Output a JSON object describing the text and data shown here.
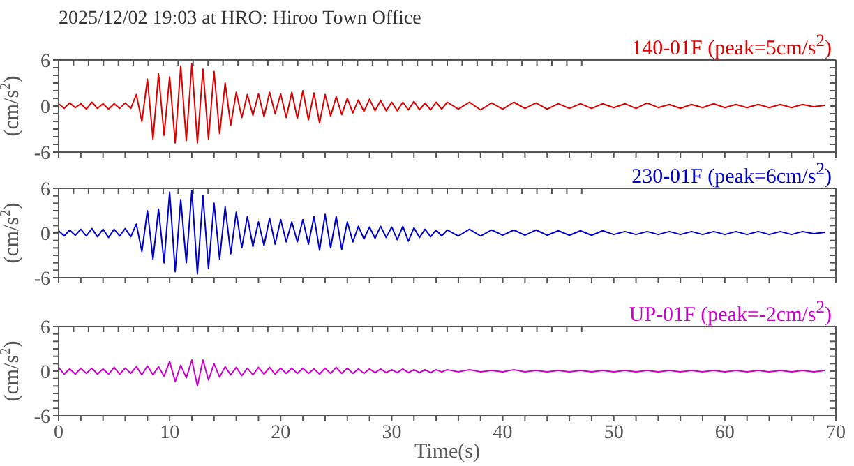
{
  "chart_data": [
    {
      "type": "line",
      "title": "2025/12/02 19:03 at HRO: Hiroo Town Office",
      "ylabel": "(cm/s$^{2}$)",
      "legend": "top right",
      "tick_labels": "y",
      "xlim": [
        0,
        70
      ],
      "xticks": [
        {
          "value": 0,
          "label": null
        },
        {
          "value": 2,
          "label": null
        },
        {
          "value": 4,
          "label": null
        },
        {
          "value": 6,
          "label": null
        },
        {
          "value": 8,
          "label": null
        },
        {
          "value": 10,
          "label": null
        },
        {
          "value": 12,
          "label": null
        },
        {
          "value": 14,
          "label": null
        },
        {
          "value": 16,
          "label": null
        },
        {
          "value": 18,
          "label": null
        },
        {
          "value": 20,
          "label": null
        },
        {
          "value": 22,
          "label": null
        },
        {
          "value": 24,
          "label": null
        },
        {
          "value": 26,
          "label": null
        },
        {
          "value": 28,
          "label": null
        },
        {
          "value": 30,
          "label": null
        },
        {
          "value": 32,
          "label": null
        },
        {
          "value": 34,
          "label": null
        },
        {
          "value": 36,
          "label": null
        },
        {
          "value": 38,
          "label": null
        },
        {
          "value": 40,
          "label": null
        },
        {
          "value": 42,
          "label": null
        },
        {
          "value": 44,
          "label": null
        },
        {
          "value": 46,
          "label": null
        },
        {
          "value": 48,
          "label": null
        },
        {
          "value": 50,
          "label": null
        },
        {
          "value": 52,
          "label": null
        },
        {
          "value": 54,
          "label": null
        },
        {
          "value": 56,
          "label": null
        },
        {
          "value": 58,
          "label": null
        },
        {
          "value": 60,
          "label": null
        },
        {
          "value": 62,
          "label": null
        },
        {
          "value": 64,
          "label": null
        },
        {
          "value": 66,
          "label": null
        },
        {
          "value": 68,
          "label": null
        },
        {
          "value": 70,
          "label": null
        }
      ],
      "ylim": [
        -6,
        6
      ],
      "yticks": [
        -6,
        {
          "value": -5,
          "label": null
        },
        {
          "value": -4,
          "label": null
        },
        {
          "value": -3,
          "label": null
        },
        {
          "value": -2,
          "label": null
        },
        {
          "value": -1,
          "label": null
        },
        0,
        {
          "value": 1,
          "label": null
        },
        {
          "value": 2,
          "label": null
        },
        {
          "value": 3,
          "label": null
        },
        {
          "value": 4,
          "label": null
        },
        {
          "value": 5,
          "label": null
        },
        6
      ],
      "x": [
        0,
        0.5,
        1,
        1.5,
        2,
        2.5,
        3,
        3.5,
        4,
        4.5,
        5,
        5.5,
        6,
        6.5,
        7,
        7.5,
        8,
        8.5,
        9,
        9.5,
        10,
        10.5,
        11,
        11.5,
        12,
        12.5,
        13,
        13.5,
        14,
        14.5,
        15,
        15.5,
        16,
        16.5,
        17,
        17.5,
        18,
        18.5,
        19,
        19.5,
        20,
        20.5,
        21,
        21.5,
        22,
        22.5,
        23,
        23.5,
        24,
        24.5,
        25,
        25.5,
        26,
        26.5,
        27,
        27.5,
        28,
        28.5,
        29,
        29.5,
        30,
        30.5,
        31,
        31.5,
        32,
        32.5,
        33,
        33.5,
        34,
        34.5,
        35,
        36,
        37,
        38,
        39,
        40,
        41,
        42,
        43,
        44,
        45,
        46,
        47,
        48,
        49,
        50,
        51,
        52,
        53,
        54,
        55,
        56,
        57,
        58,
        59,
        60,
        61,
        62,
        63,
        64,
        65,
        66,
        67,
        68,
        69
      ],
      "series": [
        {
          "name": "140-01F (peak=5cm/s$^{2}$)",
          "color": "#dd0000",
          "values": [
            0.3,
            -0.3,
            0.4,
            -0.2,
            0.3,
            -0.4,
            0.5,
            -0.3,
            0.3,
            -0.4,
            0.3,
            -0.3,
            0.4,
            -0.3,
            1.5,
            -2.0,
            3.5,
            -4.3,
            4.2,
            -3.8,
            3.8,
            -4.8,
            5.2,
            -4.5,
            5.5,
            -4.8,
            4.8,
            -4.3,
            4.5,
            -3.6,
            3.0,
            -2.5,
            1.8,
            -1.5,
            1.5,
            -1.2,
            1.6,
            -1.4,
            1.8,
            -1.0,
            1.6,
            -1.5,
            1.8,
            -1.6,
            2.0,
            -1.8,
            1.7,
            -2.2,
            1.5,
            -1.3,
            1.2,
            -1.1,
            1.0,
            -0.9,
            0.8,
            -0.7,
            0.9,
            -0.6,
            0.7,
            -0.6,
            0.5,
            -0.6,
            0.5,
            -0.5,
            0.6,
            -0.5,
            0.4,
            -0.5,
            0.5,
            -0.4,
            0.5,
            -0.4,
            0.5,
            -0.5,
            0.4,
            -0.4,
            0.5,
            -0.3,
            0.4,
            -0.4,
            0.3,
            -0.3,
            0.3,
            -0.3,
            0.3,
            -0.2,
            0.3,
            -0.3,
            0.4,
            -0.2,
            0.2,
            -0.3,
            0.2,
            -0.2,
            0.3,
            -0.2,
            0.2,
            -0.2,
            0.2,
            -0.2,
            0.2,
            -0.2,
            0.2,
            -0.1,
            0.1
          ]
        }
      ]
    },
    {
      "type": "line",
      "ylabel": "(cm/s$^{2}$)",
      "legend": "top right",
      "tick_labels": "y",
      "xlim": [
        0,
        70
      ],
      "xticks": [
        {
          "value": 0,
          "label": null
        },
        {
          "value": 2,
          "label": null
        },
        {
          "value": 4,
          "label": null
        },
        {
          "value": 6,
          "label": null
        },
        {
          "value": 8,
          "label": null
        },
        {
          "value": 10,
          "label": null
        },
        {
          "value": 12,
          "label": null
        },
        {
          "value": 14,
          "label": null
        },
        {
          "value": 16,
          "label": null
        },
        {
          "value": 18,
          "label": null
        },
        {
          "value": 20,
          "label": null
        },
        {
          "value": 22,
          "label": null
        },
        {
          "value": 24,
          "label": null
        },
        {
          "value": 26,
          "label": null
        },
        {
          "value": 28,
          "label": null
        },
        {
          "value": 30,
          "label": null
        },
        {
          "value": 32,
          "label": null
        },
        {
          "value": 34,
          "label": null
        },
        {
          "value": 36,
          "label": null
        },
        {
          "value": 38,
          "label": null
        },
        {
          "value": 40,
          "label": null
        },
        {
          "value": 42,
          "label": null
        },
        {
          "value": 44,
          "label": null
        },
        {
          "value": 46,
          "label": null
        },
        {
          "value": 48,
          "label": null
        },
        {
          "value": 50,
          "label": null
        },
        {
          "value": 52,
          "label": null
        },
        {
          "value": 54,
          "label": null
        },
        {
          "value": 56,
          "label": null
        },
        {
          "value": 58,
          "label": null
        },
        {
          "value": 60,
          "label": null
        },
        {
          "value": 62,
          "label": null
        },
        {
          "value": 64,
          "label": null
        },
        {
          "value": 66,
          "label": null
        },
        {
          "value": 68,
          "label": null
        },
        {
          "value": 70,
          "label": null
        }
      ],
      "ylim": [
        -6,
        6
      ],
      "yticks": [
        -6,
        {
          "value": -5,
          "label": null
        },
        {
          "value": -4,
          "label": null
        },
        {
          "value": -3,
          "label": null
        },
        {
          "value": -2,
          "label": null
        },
        {
          "value": -1,
          "label": null
        },
        0,
        {
          "value": 1,
          "label": null
        },
        {
          "value": 2,
          "label": null
        },
        {
          "value": 3,
          "label": null
        },
        {
          "value": 4,
          "label": null
        },
        {
          "value": 5,
          "label": null
        },
        6
      ],
      "x": [
        0,
        0.5,
        1,
        1.5,
        2,
        2.5,
        3,
        3.5,
        4,
        4.5,
        5,
        5.5,
        6,
        6.5,
        7,
        7.5,
        8,
        8.5,
        9,
        9.5,
        10,
        10.5,
        11,
        11.5,
        12,
        12.5,
        13,
        13.5,
        14,
        14.5,
        15,
        15.5,
        16,
        16.5,
        17,
        17.5,
        18,
        18.5,
        19,
        19.5,
        20,
        20.5,
        21,
        21.5,
        22,
        22.5,
        23,
        23.5,
        24,
        24.5,
        25,
        25.5,
        26,
        26.5,
        27,
        27.5,
        28,
        28.5,
        29,
        29.5,
        30,
        30.5,
        31,
        31.5,
        32,
        32.5,
        33,
        33.5,
        34,
        34.5,
        35,
        36,
        37,
        38,
        39,
        40,
        41,
        42,
        43,
        44,
        45,
        46,
        47,
        48,
        49,
        50,
        51,
        52,
        53,
        54,
        55,
        56,
        57,
        58,
        59,
        60,
        61,
        62,
        63,
        64,
        65,
        66,
        67,
        68,
        69
      ],
      "series": [
        {
          "name": "230-01F (peak=6cm/s$^{2}$)",
          "color": "#0000cc",
          "values": [
            0.3,
            -0.4,
            0.4,
            -0.3,
            0.5,
            -0.4,
            0.6,
            -0.5,
            0.5,
            -0.6,
            0.5,
            -0.4,
            0.6,
            -0.5,
            1.2,
            -2.5,
            3.0,
            -3.5,
            3.2,
            -4.0,
            5.5,
            -5.2,
            4.5,
            -4.0,
            5.7,
            -5.5,
            5.0,
            -4.8,
            4.0,
            -3.5,
            3.5,
            -2.8,
            2.8,
            -2.0,
            2.2,
            -1.8,
            1.5,
            -1.7,
            2.0,
            -1.5,
            1.8,
            -1.2,
            1.5,
            -1.2,
            1.8,
            -1.5,
            2.2,
            -2.3,
            2.5,
            -2.0,
            2.2,
            -2.2,
            1.5,
            -1.2,
            0.9,
            -0.8,
            0.8,
            -0.7,
            0.9,
            -0.6,
            0.8,
            -0.9,
            0.9,
            -1.1,
            0.7,
            -0.6,
            0.5,
            -0.5,
            0.4,
            -0.4,
            0.4,
            -0.4,
            0.5,
            -0.4,
            0.4,
            -0.3,
            0.4,
            -0.3,
            0.4,
            -0.3,
            0.3,
            -0.3,
            0.3,
            -0.3,
            0.3,
            -0.2,
            0.2,
            -0.2,
            0.2,
            -0.2,
            0.2,
            -0.2,
            0.2,
            -0.2,
            0.2,
            -0.2,
            0.2,
            -0.2,
            0.2,
            -0.2,
            0.2,
            -0.2,
            0.2,
            -0.1,
            0.1
          ]
        }
      ]
    },
    {
      "type": "line",
      "ylabel": "(cm/s$^{2}$)",
      "xlabel": "Time(s)",
      "legend": "top right",
      "xlim": [
        0,
        70
      ],
      "xticks": [
        0,
        {
          "value": 2,
          "label": null
        },
        {
          "value": 4,
          "label": null
        },
        {
          "value": 6,
          "label": null
        },
        {
          "value": 8,
          "label": null
        },
        10,
        {
          "value": 12,
          "label": null
        },
        {
          "value": 14,
          "label": null
        },
        {
          "value": 16,
          "label": null
        },
        {
          "value": 18,
          "label": null
        },
        20,
        {
          "value": 22,
          "label": null
        },
        {
          "value": 24,
          "label": null
        },
        {
          "value": 26,
          "label": null
        },
        {
          "value": 28,
          "label": null
        },
        30,
        {
          "value": 32,
          "label": null
        },
        {
          "value": 34,
          "label": null
        },
        {
          "value": 36,
          "label": null
        },
        {
          "value": 38,
          "label": null
        },
        40,
        {
          "value": 42,
          "label": null
        },
        {
          "value": 44,
          "label": null
        },
        {
          "value": 46,
          "label": null
        },
        {
          "value": 48,
          "label": null
        },
        50,
        {
          "value": 52,
          "label": null
        },
        {
          "value": 54,
          "label": null
        },
        {
          "value": 56,
          "label": null
        },
        {
          "value": 58,
          "label": null
        },
        60,
        {
          "value": 62,
          "label": null
        },
        {
          "value": 64,
          "label": null
        },
        {
          "value": 66,
          "label": null
        },
        {
          "value": 68,
          "label": null
        },
        70
      ],
      "ylim": [
        -6,
        6
      ],
      "yticks": [
        -6,
        {
          "value": -5,
          "label": null
        },
        {
          "value": -4,
          "label": null
        },
        {
          "value": -3,
          "label": null
        },
        {
          "value": -2,
          "label": null
        },
        {
          "value": -1,
          "label": null
        },
        0,
        {
          "value": 1,
          "label": null
        },
        {
          "value": 2,
          "label": null
        },
        {
          "value": 3,
          "label": null
        },
        {
          "value": 4,
          "label": null
        },
        {
          "value": 5,
          "label": null
        },
        6
      ],
      "x": [
        0,
        0.5,
        1,
        1.5,
        2,
        2.5,
        3,
        3.5,
        4,
        4.5,
        5,
        5.5,
        6,
        6.5,
        7,
        7.5,
        8,
        8.5,
        9,
        9.5,
        10,
        10.5,
        11,
        11.5,
        12,
        12.5,
        13,
        13.5,
        14,
        14.5,
        15,
        15.5,
        16,
        16.5,
        17,
        17.5,
        18,
        18.5,
        19,
        19.5,
        20,
        20.5,
        21,
        21.5,
        22,
        22.5,
        23,
        23.5,
        24,
        24.5,
        25,
        25.5,
        26,
        26.5,
        27,
        27.5,
        28,
        28.5,
        29,
        29.5,
        30,
        30.5,
        31,
        31.5,
        32,
        32.5,
        33,
        33.5,
        34,
        34.5,
        35,
        36,
        37,
        38,
        39,
        40,
        41,
        42,
        43,
        44,
        45,
        46,
        47,
        48,
        49,
        50,
        51,
        52,
        53,
        54,
        55,
        56,
        57,
        58,
        59,
        60,
        61,
        62,
        63,
        64,
        65,
        66,
        67,
        68,
        69
      ],
      "series": [
        {
          "name": "UP-01F (peak=-2cm/s$^{2}$)",
          "color": "#cc00cc",
          "values": [
            0.5,
            -0.4,
            0.3,
            -0.4,
            0.4,
            -0.3,
            0.4,
            -0.4,
            0.3,
            -0.4,
            0.5,
            -0.4,
            0.4,
            -0.3,
            0.6,
            -0.5,
            0.7,
            -0.5,
            0.6,
            -0.7,
            1.3,
            -1.4,
            0.8,
            -0.9,
            1.5,
            -2.0,
            1.5,
            -1.2,
            1.0,
            -0.8,
            0.6,
            -0.5,
            0.5,
            -0.6,
            0.4,
            -0.5,
            0.5,
            -0.4,
            0.5,
            -0.4,
            0.4,
            -0.3,
            0.4,
            -0.3,
            0.4,
            -0.3,
            0.3,
            -0.4,
            0.4,
            -0.3,
            0.5,
            -0.3,
            0.4,
            -0.3,
            0.3,
            -0.3,
            0.3,
            -0.2,
            0.3,
            -0.2,
            0.2,
            -0.2,
            0.3,
            -0.2,
            0.2,
            -0.2,
            0.2,
            -0.2,
            0.2,
            -0.1,
            0.2,
            -0.1,
            0.2,
            -0.1,
            0.1,
            -0.1,
            0.2,
            -0.1,
            0.1,
            -0.1,
            0.1,
            -0.1,
            0.1,
            -0.1,
            0.1,
            -0.1,
            0.1,
            -0.1,
            0.1,
            -0.1,
            0.1,
            -0.1,
            0.1,
            -0.1,
            0.1,
            -0.1,
            0.1,
            -0.1,
            0.1,
            -0.1,
            0.1,
            -0.1,
            0.1,
            -0.1,
            0.1
          ]
        }
      ]
    }
  ]
}
